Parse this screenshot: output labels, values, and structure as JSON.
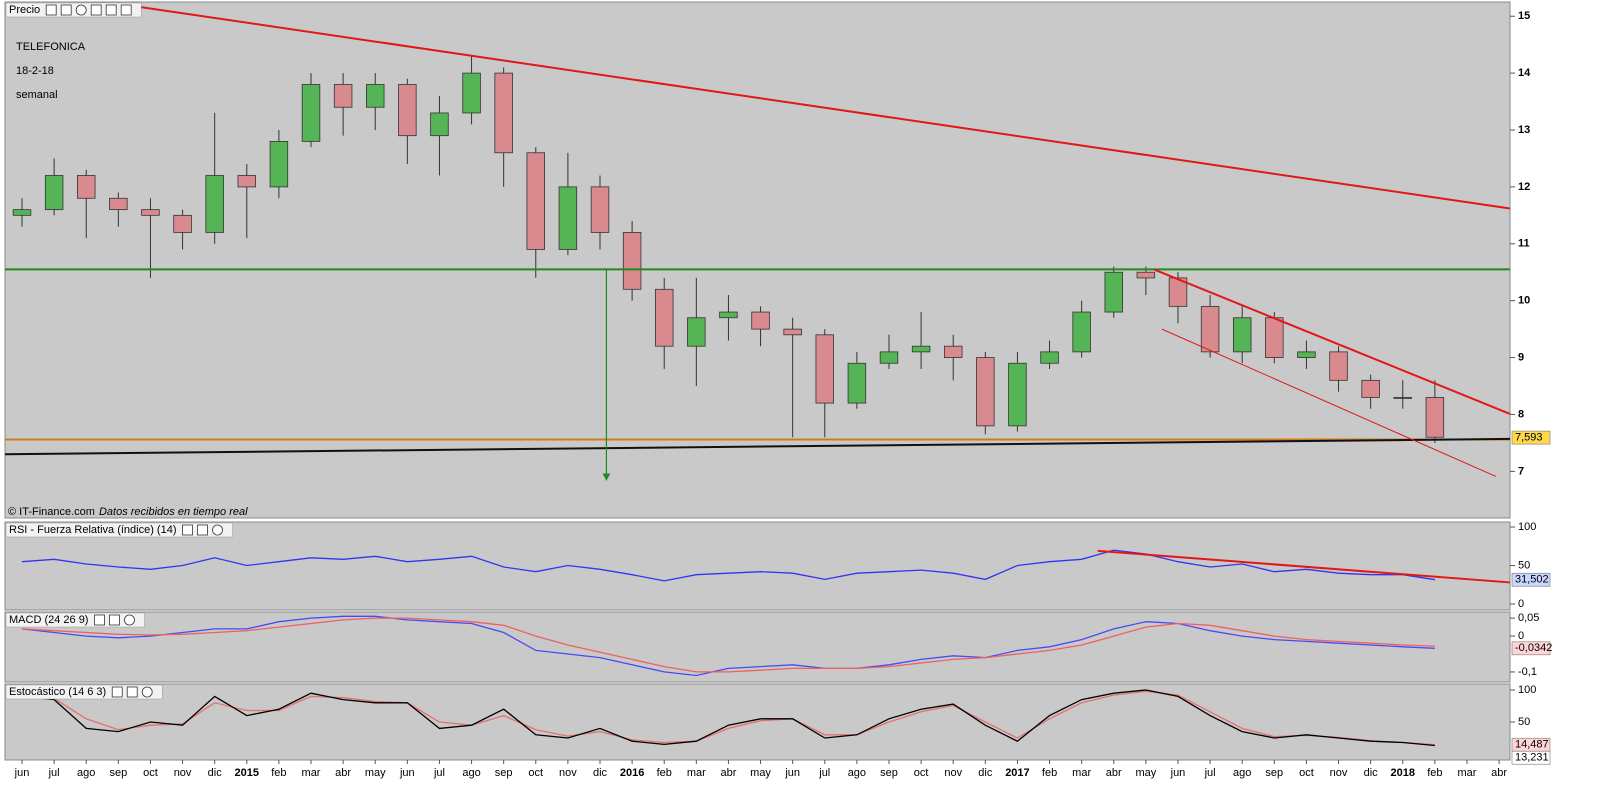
{
  "chart_data": [
    {
      "type": "candlestick",
      "title": "Precio",
      "annotations": [
        "TELEFONICA",
        "18-2-18",
        "semanal"
      ],
      "source": "© IT-Finance.com",
      "source_note": "Datos recibidos en tiempo real",
      "x": [
        0,
        1,
        2,
        3,
        4,
        5,
        6,
        7,
        8,
        9,
        10,
        11,
        12,
        13,
        14,
        15,
        16,
        17,
        18,
        19,
        20,
        21,
        22,
        23,
        24,
        25,
        26,
        27,
        28,
        29,
        30,
        31,
        32,
        33,
        34,
        35,
        36,
        37,
        38,
        39,
        40,
        41,
        42,
        43,
        44
      ],
      "open": [
        11.5,
        11.6,
        12.2,
        11.8,
        11.6,
        11.5,
        11.2,
        12.2,
        12.0,
        12.8,
        13.8,
        13.4,
        13.8,
        12.9,
        13.3,
        14.0,
        12.6,
        10.9,
        12.0,
        11.2,
        10.2,
        9.2,
        9.7,
        9.8,
        9.5,
        9.4,
        8.2,
        8.9,
        9.1,
        9.2,
        9.0,
        7.8,
        8.9,
        9.1,
        9.8,
        10.5,
        10.4,
        9.9,
        9.1,
        9.7,
        9.0,
        9.1,
        8.6,
        8.3,
        8.3
      ],
      "high": [
        11.8,
        12.5,
        12.3,
        11.9,
        11.8,
        11.6,
        13.3,
        12.4,
        13.0,
        14.0,
        14.0,
        14.0,
        13.9,
        13.6,
        14.3,
        14.1,
        12.7,
        12.6,
        12.2,
        11.4,
        10.4,
        10.4,
        10.1,
        9.9,
        9.7,
        9.5,
        9.1,
        9.4,
        9.8,
        9.4,
        9.1,
        9.1,
        9.3,
        10.0,
        10.6,
        10.6,
        10.5,
        10.1,
        9.9,
        9.8,
        9.3,
        9.2,
        8.7,
        8.6,
        8.6
      ],
      "low": [
        11.3,
        11.5,
        11.1,
        11.3,
        10.4,
        10.9,
        11.0,
        11.1,
        11.8,
        12.7,
        12.9,
        13.0,
        12.4,
        12.2,
        13.1,
        12.0,
        10.4,
        10.8,
        10.9,
        10.0,
        8.8,
        8.5,
        9.3,
        9.2,
        7.6,
        7.6,
        8.1,
        8.8,
        8.8,
        8.6,
        7.65,
        7.7,
        8.8,
        9.0,
        9.7,
        10.1,
        9.6,
        9.0,
        8.9,
        8.9,
        8.8,
        8.4,
        8.1,
        8.1,
        7.5
      ],
      "close": [
        11.6,
        12.2,
        11.8,
        11.6,
        11.5,
        11.2,
        12.2,
        12.0,
        12.8,
        13.8,
        13.4,
        13.8,
        12.9,
        13.3,
        14.0,
        12.6,
        10.9,
        12.0,
        11.2,
        10.2,
        9.2,
        9.7,
        9.8,
        9.5,
        9.4,
        8.2,
        8.9,
        9.1,
        9.2,
        9.0,
        7.8,
        8.9,
        9.1,
        9.8,
        10.5,
        10.4,
        9.9,
        9.1,
        9.7,
        9.0,
        9.1,
        8.6,
        8.3,
        8.3,
        7.6
      ],
      "up_color": "#55b455",
      "down_color": "#d98a8e",
      "lines": [
        {
          "color": "#e01818",
          "x": [
            3.7,
            46.34
          ],
          "y": [
            15.16,
            11.62
          ]
        },
        {
          "color": "#1f8a1f",
          "x": [
            -0.53,
            46.34
          ],
          "y": [
            10.55,
            10.55
          ]
        },
        {
          "color": "#d07a20",
          "x": [
            -0.53,
            46.34
          ],
          "y": [
            7.56,
            7.56
          ]
        },
        {
          "color": "#111111",
          "x": [
            -0.53,
            46.34
          ],
          "y": [
            7.3,
            7.57
          ]
        },
        {
          "color": "#e01818",
          "x": [
            35.25,
            46.34
          ],
          "y": [
            10.55,
            8.01
          ]
        },
        {
          "color": "#e01818",
          "x": [
            35.5,
            45.9
          ],
          "y": [
            9.5,
            6.91
          ]
        }
      ],
      "arrow": {
        "color": "#1f8a1f",
        "x": 18.2,
        "y": [
          10.55,
          6.84
        ]
      },
      "last": {
        "value": 7.593,
        "label": "7,593",
        "color": "#ffd84d"
      },
      "xlim": [
        -0.53,
        46.34
      ],
      "ylim": [
        6.18,
        15.25
      ],
      "yticks": [
        7,
        8,
        9,
        10,
        11,
        12,
        13,
        14,
        15
      ]
    },
    {
      "type": "line",
      "title": "RSI - Fuerza Relativa (índice) (14)",
      "x": [
        0,
        1,
        2,
        3,
        4,
        5,
        6,
        7,
        8,
        9,
        10,
        11,
        12,
        13,
        14,
        15,
        16,
        17,
        18,
        19,
        20,
        21,
        22,
        23,
        24,
        25,
        26,
        27,
        28,
        29,
        30,
        31,
        32,
        33,
        34,
        35,
        36,
        37,
        38,
        39,
        40,
        41,
        42,
        43,
        44
      ],
      "series": [
        {
          "color": "#3434f0",
          "values": [
            55,
            58,
            52,
            48,
            45,
            50,
            60,
            50,
            55,
            60,
            58,
            62,
            55,
            58,
            62,
            48,
            42,
            50,
            45,
            38,
            30,
            38,
            40,
            42,
            40,
            32,
            40,
            42,
            44,
            40,
            32,
            50,
            55,
            58,
            70,
            65,
            55,
            48,
            52,
            42,
            45,
            40,
            38,
            38,
            31.5
          ],
          "last": {
            "value": 31.502,
            "label": "31,502",
            "color": "#c9d6ff"
          }
        }
      ],
      "lines": [
        {
          "color": "#e01818",
          "x": [
            33.5,
            46.34
          ],
          "y": [
            69,
            28
          ]
        }
      ],
      "xlim": [
        -0.53,
        46.34
      ],
      "ylim": [
        -7.8,
        106.5
      ],
      "yticks": [
        0,
        50,
        100
      ]
    },
    {
      "type": "line",
      "title": "MACD (24 26 9)",
      "x": [
        0,
        1,
        2,
        3,
        4,
        5,
        6,
        7,
        8,
        9,
        10,
        11,
        12,
        13,
        14,
        15,
        16,
        17,
        18,
        19,
        20,
        21,
        22,
        23,
        24,
        25,
        26,
        27,
        28,
        29,
        30,
        31,
        32,
        33,
        34,
        35,
        36,
        37,
        38,
        39,
        40,
        41,
        42,
        43,
        44
      ],
      "series": [
        {
          "color": "#4a4af5",
          "values": [
            0.02,
            0.01,
            0,
            -0.005,
            0,
            0.01,
            0.02,
            0.02,
            0.04,
            0.05,
            0.055,
            0.055,
            0.045,
            0.04,
            0.035,
            0.01,
            -0.04,
            -0.05,
            -0.06,
            -0.08,
            -0.1,
            -0.11,
            -0.09,
            -0.085,
            -0.08,
            -0.09,
            -0.09,
            -0.08,
            -0.065,
            -0.055,
            -0.06,
            -0.04,
            -0.03,
            -0.01,
            0.02,
            0.04,
            0.035,
            0.015,
            0,
            -0.01,
            -0.015,
            -0.02,
            -0.025,
            -0.03,
            -0.0342
          ],
          "last": {
            "value": -0.0342,
            "label": "-0,0342",
            "color": "#ffd4d4"
          }
        },
        {
          "color": "#f06060",
          "values": [
            0.02,
            0.015,
            0.01,
            0.005,
            0.003,
            0.005,
            0.01,
            0.015,
            0.025,
            0.035,
            0.045,
            0.05,
            0.05,
            0.045,
            0.04,
            0.03,
            0.0,
            -0.025,
            -0.045,
            -0.065,
            -0.085,
            -0.1,
            -0.1,
            -0.095,
            -0.09,
            -0.09,
            -0.09,
            -0.085,
            -0.075,
            -0.065,
            -0.06,
            -0.05,
            -0.04,
            -0.025,
            0.0,
            0.025,
            0.035,
            0.03,
            0.015,
            0.0,
            -0.01,
            -0.015,
            -0.02,
            -0.025,
            -0.028
          ]
        }
      ],
      "xlim": [
        -0.53,
        46.34
      ],
      "ylim": [
        -0.128,
        0.067
      ],
      "yticks": [
        {
          "value": 0.05,
          "label": "0,05"
        },
        0,
        {
          "value": -0.1,
          "label": "-0,1"
        }
      ]
    },
    {
      "type": "line",
      "title": "Estocástico (14 6 3)",
      "x": [
        0,
        1,
        2,
        3,
        4,
        5,
        6,
        7,
        8,
        9,
        10,
        11,
        12,
        13,
        14,
        15,
        16,
        17,
        18,
        19,
        20,
        21,
        22,
        23,
        24,
        25,
        26,
        27,
        28,
        29,
        30,
        31,
        32,
        33,
        34,
        35,
        36,
        37,
        38,
        39,
        40,
        41,
        42,
        43,
        44
      ],
      "series": [
        {
          "color": "#e57070",
          "values": [
            88,
            87,
            55,
            38,
            45,
            47,
            80,
            68,
            68,
            90,
            88,
            82,
            80,
            50,
            45,
            60,
            38,
            28,
            35,
            22,
            18,
            20,
            40,
            52,
            55,
            30,
            30,
            50,
            66,
            76,
            50,
            25,
            55,
            80,
            92,
            98,
            92,
            66,
            40,
            27,
            29,
            26,
            21,
            18,
            14.487
          ],
          "last": {
            "value": 14.487,
            "label": "14,487",
            "color": "#ffd4d4"
          }
        },
        {
          "color": "#000000",
          "values": [
            90,
            85,
            40,
            35,
            50,
            45,
            90,
            60,
            70,
            95,
            85,
            80,
            80,
            40,
            45,
            70,
            30,
            25,
            40,
            20,
            15,
            20,
            45,
            55,
            55,
            25,
            30,
            55,
            70,
            78,
            45,
            20,
            60,
            85,
            95,
            100,
            90,
            60,
            35,
            25,
            30,
            25,
            20,
            18,
            13.231
          ],
          "last": {
            "value": 13.231,
            "label": "13,231",
            "color": "#ffffff"
          }
        }
      ],
      "xlim": [
        -0.53,
        46.34
      ],
      "ylim": [
        -9.4,
        109.4
      ],
      "yticks": [
        50,
        100
      ],
      "xticks": [
        {
          "value": 0,
          "label": "jun"
        },
        {
          "value": 1,
          "label": "jul"
        },
        {
          "value": 2,
          "label": "ago"
        },
        {
          "value": 3,
          "label": "sep"
        },
        {
          "value": 4,
          "label": "oct"
        },
        {
          "value": 5,
          "label": "nov"
        },
        {
          "value": 6,
          "label": "dic"
        },
        {
          "value": 7,
          "label": "2015"
        },
        {
          "value": 8,
          "label": "feb"
        },
        {
          "value": 9,
          "label": "mar"
        },
        {
          "value": 10,
          "label": "abr"
        },
        {
          "value": 11,
          "label": "may"
        },
        {
          "value": 12,
          "label": "jun"
        },
        {
          "value": 13,
          "label": "jul"
        },
        {
          "value": 14,
          "label": "ago"
        },
        {
          "value": 15,
          "label": "sep"
        },
        {
          "value": 16,
          "label": "oct"
        },
        {
          "value": 17,
          "label": "nov"
        },
        {
          "value": 18,
          "label": "dic"
        },
        {
          "value": 19,
          "label": "2016"
        },
        {
          "value": 20,
          "label": "feb"
        },
        {
          "value": 21,
          "label": "mar"
        },
        {
          "value": 22,
          "label": "abr"
        },
        {
          "value": 23,
          "label": "may"
        },
        {
          "value": 24,
          "label": "jun"
        },
        {
          "value": 25,
          "label": "jul"
        },
        {
          "value": 26,
          "label": "ago"
        },
        {
          "value": 27,
          "label": "sep"
        },
        {
          "value": 28,
          "label": "oct"
        },
        {
          "value": 29,
          "label": "nov"
        },
        {
          "value": 30,
          "label": "dic"
        },
        {
          "value": 31,
          "label": "2017"
        },
        {
          "value": 32,
          "label": "feb"
        },
        {
          "value": 33,
          "label": "mar"
        },
        {
          "value": 34,
          "label": "abr"
        },
        {
          "value": 35,
          "label": "may"
        },
        {
          "value": 36,
          "label": "jun"
        },
        {
          "value": 37,
          "label": "jul"
        },
        {
          "value": 38,
          "label": "ago"
        },
        {
          "value": 39,
          "label": "sep"
        },
        {
          "value": 40,
          "label": "oct"
        },
        {
          "value": 41,
          "label": "nov"
        },
        {
          "value": 42,
          "label": "dic"
        },
        {
          "value": 43,
          "label": "2018"
        },
        {
          "value": 44,
          "label": "feb"
        },
        {
          "value": 45,
          "label": "mar"
        },
        {
          "value": 46,
          "label": "abr"
        }
      ]
    }
  ]
}
